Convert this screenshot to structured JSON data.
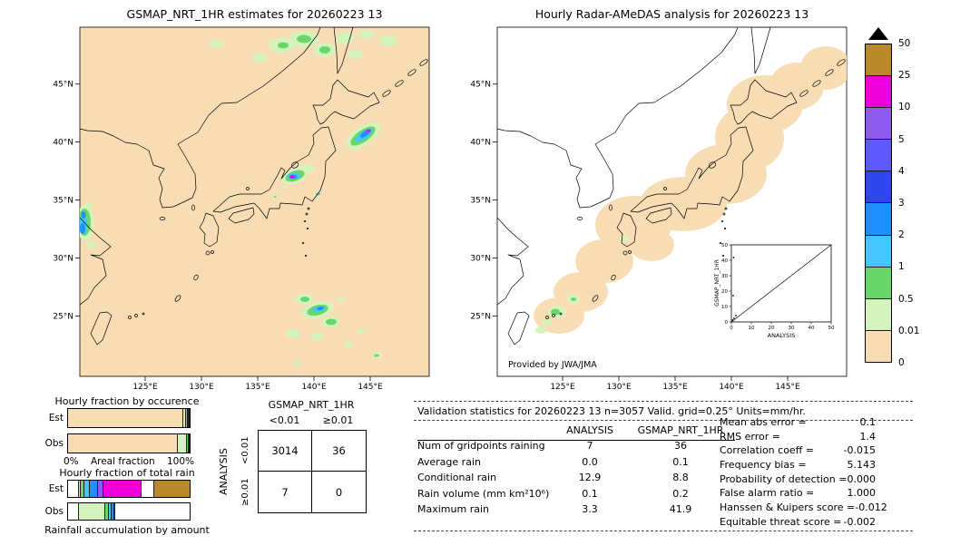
{
  "left_map": {
    "title": "GSMAP_NRT_1HR estimates for 20260223 13"
  },
  "right_map": {
    "title": "Hourly Radar-AMeDAS analysis for 20260223 13",
    "credit": "Provided by JWA/JMA",
    "inset": {
      "ylabel": "GSMAP_NRT_1HR",
      "xlabel": "ANALYSIS",
      "tick_labels": [
        "0",
        "10",
        "20",
        "30",
        "40",
        "50"
      ]
    }
  },
  "map_axes": {
    "lat_ticks": [
      "45°N",
      "40°N",
      "35°N",
      "30°N",
      "25°N"
    ],
    "lon_ticks": [
      "125°E",
      "130°E",
      "135°E",
      "140°E",
      "145°E"
    ]
  },
  "colorbar": {
    "units": "mm/hr",
    "boundary_labels": [
      "50",
      "25",
      "10",
      "5",
      "4",
      "3",
      "2",
      "1",
      "0.5",
      "0.01",
      "0"
    ],
    "segment_colors_top_to_bottom": [
      "#b98a2c",
      "#ee00dd",
      "#8f5bef",
      "#5f5aff",
      "#2f46ee",
      "#1e90ff",
      "#45c5fd",
      "#6ad66a",
      "#d4f3bc",
      "#f8ddb4"
    ]
  },
  "fractions": {
    "occurrence_title": "Hourly fraction by occurence",
    "totalrain_title": "Hourly fraction of total rain",
    "caption": "Rainfall accumulation by amount",
    "est_label": "Est",
    "obs_label": "Obs",
    "axis": {
      "min": "0%",
      "label": "Areal fraction",
      "max": "100%"
    },
    "occurrence_bars": {
      "est": [
        {
          "color": "#f8ddb4",
          "pct": 94.5
        },
        {
          "color": "#d4f3bc",
          "pct": 2.5
        },
        {
          "color": "#6ad66a",
          "pct": 1.3
        },
        {
          "color": "#45c5fd",
          "pct": 0.7
        },
        {
          "color": "#1e90ff",
          "pct": 0.6
        },
        {
          "color": "#8f5bef",
          "pct": 0.4
        }
      ],
      "obs": [
        {
          "color": "#f8ddb4",
          "pct": 89.5
        },
        {
          "color": "#d4f3bc",
          "pct": 7.5
        },
        {
          "color": "#6ad66a",
          "pct": 1.5
        },
        {
          "color": "#1e90ff",
          "pct": 1.0
        },
        {
          "color": "#ee00dd",
          "pct": 0.5
        }
      ]
    },
    "totalrain_bars": {
      "est": [
        {
          "color": "#ffffff",
          "pct": 8
        },
        {
          "color": "#d4f3bc",
          "pct": 2
        },
        {
          "color": "#6ad66a",
          "pct": 3
        },
        {
          "color": "#45c5fd",
          "pct": 4
        },
        {
          "color": "#1e90ff",
          "pct": 7
        },
        {
          "color": "#8f5bef",
          "pct": 4
        },
        {
          "color": "#ee00dd",
          "pct": 32
        },
        {
          "color": "#ffffff",
          "pct": 10
        },
        {
          "color": "#b98a2c",
          "pct": 30
        }
      ],
      "obs": [
        {
          "color": "#ffffff",
          "pct": 8
        },
        {
          "color": "#d4f3bc",
          "pct": 22
        },
        {
          "color": "#6ad66a",
          "pct": 3
        },
        {
          "color": "#45c5fd",
          "pct": 2
        },
        {
          "color": "#1e90ff",
          "pct": 2
        },
        {
          "color": "#ee00dd",
          "pct": 1
        },
        {
          "color": "#ffffff",
          "pct": 62
        }
      ]
    }
  },
  "contingency": {
    "col_group_label": "GSMAP_NRT_1HR",
    "row_group_label": "ANALYSIS",
    "col_labels": [
      "<0.01",
      "≥0.01"
    ],
    "row_labels": [
      "<0.01",
      "≥0.01"
    ],
    "values": [
      [
        "3014",
        "36"
      ],
      [
        "7",
        "0"
      ]
    ]
  },
  "validation": {
    "title": "Validation statistics for 20260223 13  n=3057 Valid. grid=0.25° Units=mm/hr.",
    "columns": [
      "ANALYSIS",
      "GSMAP_NRT_1HR"
    ],
    "rows": [
      {
        "label": "Num of gridpoints raining",
        "analysis": "7",
        "gsmap": "36"
      },
      {
        "label": "Average rain",
        "analysis": "0.0",
        "gsmap": "0.1"
      },
      {
        "label": "Conditional rain",
        "analysis": "12.9",
        "gsmap": "8.8"
      },
      {
        "label": "Rain volume (mm km²10⁶)",
        "analysis": "0.1",
        "gsmap": "0.2"
      },
      {
        "label": "Maximum rain",
        "analysis": "3.3",
        "gsmap": "41.9"
      }
    ]
  },
  "scores": [
    {
      "label": "Mean abs error =",
      "value": "0.1"
    },
    {
      "label": "RMS error =",
      "value": "1.4"
    },
    {
      "label": "Correlation coeff =",
      "value": "-0.015"
    },
    {
      "label": "Frequency bias =",
      "value": "5.143"
    },
    {
      "label": "Probability of detection =",
      "value": "0.000"
    },
    {
      "label": "False alarm ratio =",
      "value": "1.000"
    },
    {
      "label": "Hanssen & Kuipers score =",
      "value": "-0.012"
    },
    {
      "label": "Equitable threat score =",
      "value": "-0.002"
    }
  ],
  "chart_data": [
    {
      "type": "heatmap",
      "title": "GSMAP_NRT_1HR estimates for 20260223 13",
      "x_ticks": [
        "125°E",
        "130°E",
        "135°E",
        "140°E",
        "145°E"
      ],
      "y_ticks": [
        "45°N",
        "40°N",
        "35°N",
        "30°N",
        "25°N"
      ],
      "units": "mm/hr",
      "color_scale_breaks": [
        0,
        0.01,
        0.5,
        1,
        2,
        3,
        4,
        5,
        10,
        25,
        50
      ],
      "maximum_value": 41.9,
      "rain_features": [
        {
          "lon_deg_e": 138.3,
          "lat_deg_n": 37.0,
          "peak_class": "10-25",
          "note": "magenta/blue core over central Honshu"
        },
        {
          "lon_deg_e": 144.5,
          "lat_deg_n": 40.5,
          "peak_class": "5-25",
          "note": "diagonal blue band east of Tohoku"
        },
        {
          "lon_deg_e": 120.0,
          "lat_deg_n": 32.5,
          "peak_class": "2-4",
          "note": "blue band at western map edge"
        },
        {
          "lon_deg_e": 140.3,
          "lat_deg_n": 25.5,
          "peak_class": "1-3",
          "note": "green/blue cluster south of Japan"
        },
        {
          "lon_deg_e": 140.5,
          "lat_deg_n": 47.5,
          "peak_class": "0.01-1",
          "note": "light green patches at northern edge"
        }
      ]
    },
    {
      "type": "heatmap",
      "title": "Hourly Radar-AMeDAS analysis for 20260223 13",
      "x_ticks": [
        "125°E",
        "130°E",
        "135°E",
        "140°E",
        "145°E"
      ],
      "y_ticks": [
        "45°N",
        "40°N",
        "35°N",
        "30°N",
        "25°N"
      ],
      "units": "mm/hr",
      "maximum_value": 3.3,
      "rain_features": [
        {
          "note": "0-0.01 mm/hr radar-coverage swath along the Japanese archipelago from the southwest islands to Hokkaido"
        },
        {
          "lon_deg_e": 124.5,
          "lat_deg_n": 24.5,
          "peak_class": "0.01-1",
          "note": "light rain spots near the Sakishima islands"
        }
      ]
    },
    {
      "type": "scatter",
      "title": "GSMAP_NRT_1HR vs ANALYSIS (inset)",
      "xlabel": "ANALYSIS",
      "ylabel": "GSMAP_NRT_1HR",
      "xlim": [
        0,
        50
      ],
      "ylim": [
        0,
        50
      ],
      "reference_line": "y = x diagonal",
      "note": "points clustered near origin; GSMAP max 41.9 at low analysis values"
    },
    {
      "type": "table",
      "title": "Contingency table (threshold 0.01 mm/hr)",
      "columns": [
        "GSMAP_NRT_1HR <0.01",
        "GSMAP_NRT_1HR ≥0.01"
      ],
      "rows": [
        "ANALYSIS <0.01",
        "ANALYSIS ≥0.01"
      ],
      "values": [
        [
          3014,
          36
        ],
        [
          7,
          0
        ]
      ]
    },
    {
      "type": "table",
      "title": "Validation statistics for 20260223 13",
      "n": 3057,
      "grid": "0.25°",
      "units": "mm/hr",
      "columns": [
        "ANALYSIS",
        "GSMAP_NRT_1HR"
      ],
      "rows": [
        {
          "label": "Num of gridpoints raining",
          "values": [
            7,
            36
          ]
        },
        {
          "label": "Average rain",
          "values": [
            0.0,
            0.1
          ]
        },
        {
          "label": "Conditional rain",
          "values": [
            12.9,
            8.8
          ]
        },
        {
          "label": "Rain volume (mm km²10⁶)",
          "values": [
            0.1,
            0.2
          ]
        },
        {
          "label": "Maximum rain",
          "values": [
            3.3,
            41.9
          ]
        }
      ],
      "scores": {
        "mean_abs_error": 0.1,
        "rms_error": 1.4,
        "correlation_coeff": -0.015,
        "frequency_bias": 5.143,
        "probability_of_detection": 0.0,
        "false_alarm_ratio": 1.0,
        "hanssen_kuipers_score": -0.012,
        "equitable_threat_score": -0.002
      }
    },
    {
      "type": "bar",
      "subtype": "stacked-horizontal-fraction",
      "title": "Hourly fraction by occurence / Hourly fraction of total rain",
      "categories": [
        "Est",
        "Obs"
      ],
      "xlabel": "Areal fraction (0% - 100%)",
      "note": "segment fractions stored in fractions.occurrence_bars and fractions.totalrain_bars; colors follow the intensity palette"
    }
  ]
}
